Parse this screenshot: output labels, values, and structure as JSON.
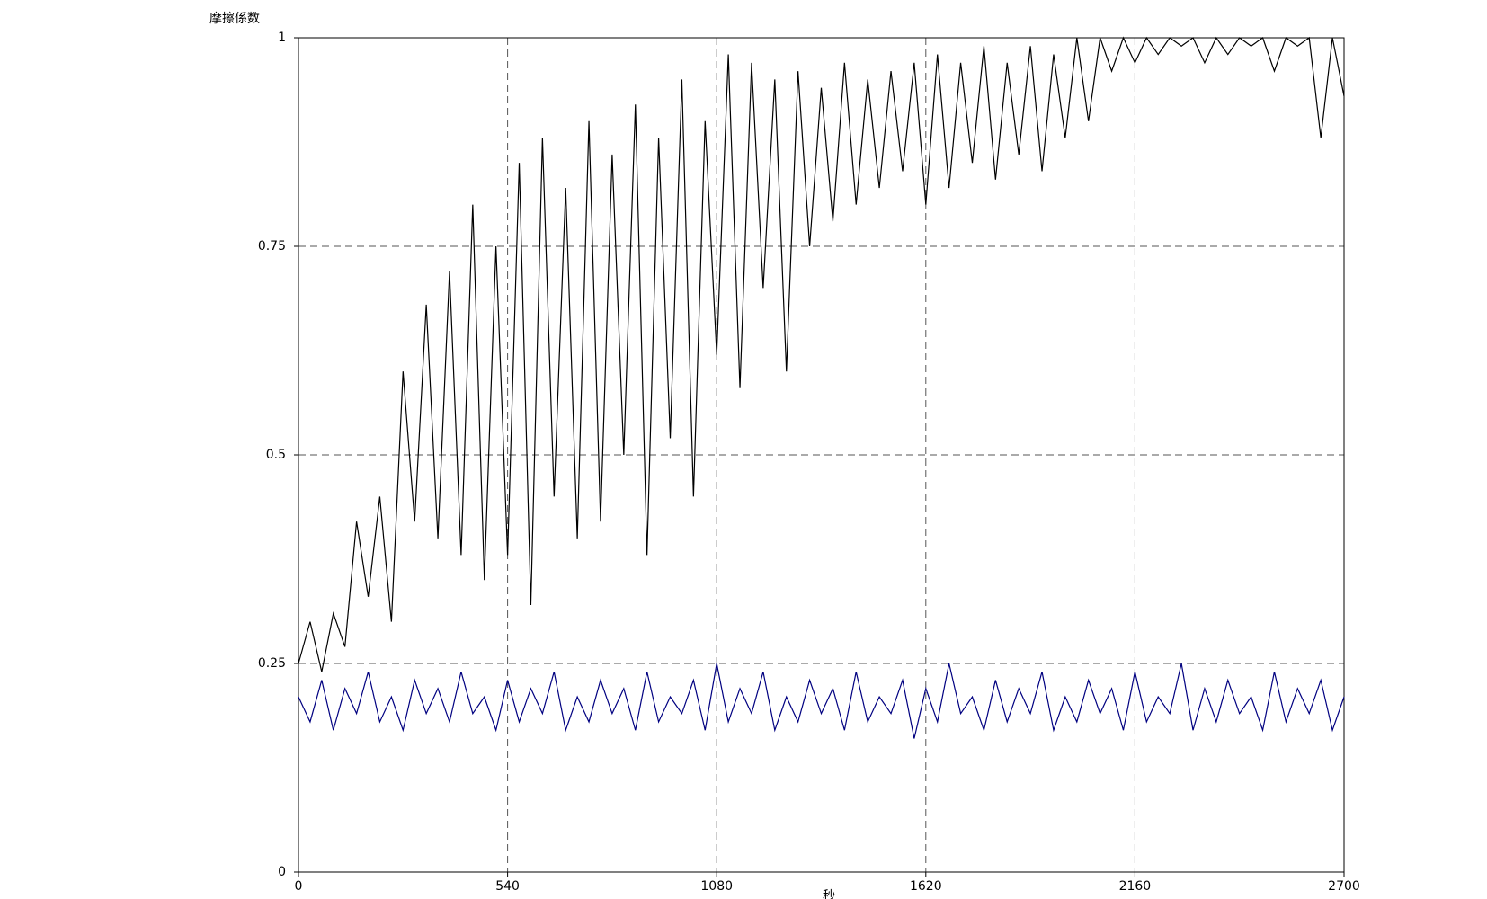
{
  "chart_data": {
    "type": "line",
    "y_label": "摩擦係数",
    "x_label": "秒",
    "x": [
      0,
      30,
      60,
      90,
      120,
      150,
      180,
      210,
      240,
      270,
      300,
      330,
      360,
      390,
      420,
      450,
      480,
      510,
      540,
      570,
      600,
      630,
      660,
      690,
      720,
      750,
      780,
      810,
      840,
      870,
      900,
      930,
      960,
      990,
      1020,
      1050,
      1080,
      1110,
      1140,
      1170,
      1200,
      1230,
      1260,
      1290,
      1320,
      1350,
      1380,
      1410,
      1440,
      1470,
      1500,
      1530,
      1560,
      1590,
      1620,
      1650,
      1680,
      1710,
      1740,
      1770,
      1800,
      1830,
      1860,
      1890,
      1920,
      1950,
      1980,
      2010,
      2040,
      2070,
      2100,
      2130,
      2160,
      2190,
      2220,
      2250,
      2280,
      2310,
      2340,
      2370,
      2400,
      2430,
      2460,
      2490,
      2520,
      2550,
      2580,
      2610,
      2640,
      2670,
      2700
    ],
    "series": [
      {
        "color": "#000000",
        "values": [
          0.25,
          0.3,
          0.24,
          0.31,
          0.27,
          0.42,
          0.33,
          0.45,
          0.3,
          0.6,
          0.42,
          0.68,
          0.4,
          0.72,
          0.38,
          0.8,
          0.35,
          0.75,
          0.38,
          0.85,
          0.32,
          0.88,
          0.45,
          0.82,
          0.4,
          0.9,
          0.42,
          0.86,
          0.5,
          0.92,
          0.38,
          0.88,
          0.52,
          0.95,
          0.45,
          0.9,
          0.62,
          0.98,
          0.58,
          0.97,
          0.7,
          0.95,
          0.6,
          0.96,
          0.75,
          0.94,
          0.78,
          0.97,
          0.8,
          0.95,
          0.82,
          0.96,
          0.84,
          0.97,
          0.8,
          0.98,
          0.82,
          0.97,
          0.85,
          0.99,
          0.83,
          0.97,
          0.86,
          0.99,
          0.84,
          0.98,
          0.88,
          1,
          0.9,
          1,
          0.96,
          1,
          0.97,
          1,
          0.98,
          1,
          0.99,
          1,
          0.97,
          1,
          0.98,
          1,
          0.99,
          1,
          0.96,
          1,
          0.99,
          1,
          0.88,
          1,
          0.93
        ]
      },
      {
        "color": "#000080",
        "values": [
          0.21,
          0.18,
          0.23,
          0.17,
          0.22,
          0.19,
          0.24,
          0.18,
          0.21,
          0.17,
          0.23,
          0.19,
          0.22,
          0.18,
          0.24,
          0.19,
          0.21,
          0.17,
          0.23,
          0.18,
          0.22,
          0.19,
          0.24,
          0.17,
          0.21,
          0.18,
          0.23,
          0.19,
          0.22,
          0.17,
          0.24,
          0.18,
          0.21,
          0.19,
          0.23,
          0.17,
          0.25,
          0.18,
          0.22,
          0.19,
          0.24,
          0.17,
          0.21,
          0.18,
          0.23,
          0.19,
          0.22,
          0.17,
          0.24,
          0.18,
          0.21,
          0.19,
          0.23,
          0.16,
          0.22,
          0.18,
          0.25,
          0.19,
          0.21,
          0.17,
          0.23,
          0.18,
          0.22,
          0.19,
          0.24,
          0.17,
          0.21,
          0.18,
          0.23,
          0.19,
          0.22,
          0.17,
          0.24,
          0.18,
          0.21,
          0.19,
          0.25,
          0.17,
          0.22,
          0.18,
          0.23,
          0.19,
          0.21,
          0.17,
          0.24,
          0.18,
          0.22,
          0.19,
          0.23,
          0.17,
          0.21
        ]
      }
    ],
    "xlim": [
      0,
      2700
    ],
    "ylim": [
      0,
      1
    ],
    "xticks": [
      0,
      540,
      1080,
      1620,
      2160,
      2700
    ],
    "yticks": [
      0,
      0.25,
      0.5,
      0.75,
      1
    ],
    "grid": true
  }
}
